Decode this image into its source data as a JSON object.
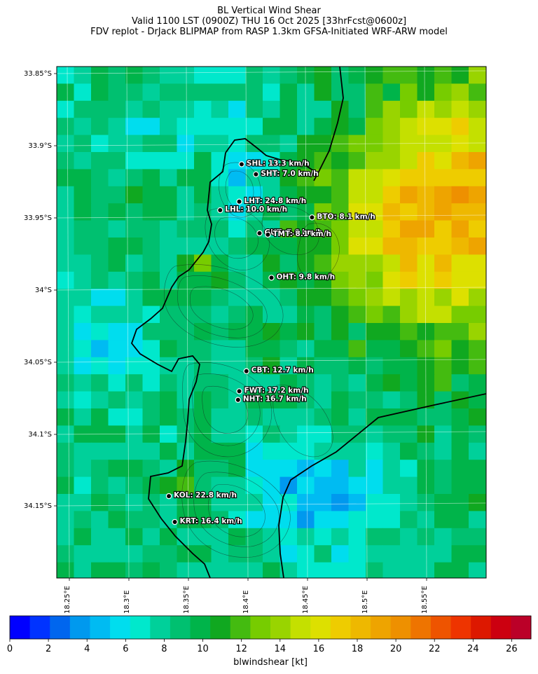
{
  "header": {
    "title": "BL Vertical Wind Shear",
    "valid_line": "Valid 1100 LST (0900Z) THU 16 Oct 2025 [33hrFcst@0600z]",
    "source_line": "FDV replot - DrJack BLIPMAP from RASP 1.3km GFSA-Initiated WRF-ARW model"
  },
  "axes": {
    "lat_labels": [
      "33.85°S",
      "33.9°S",
      "33.95°S",
      "34°S",
      "34.05°S",
      "34.1°S",
      "34.15°S"
    ],
    "lon_labels": [
      "18.25°E",
      "18.3°E",
      "18.35°E",
      "18.4°E",
      "18.45°E",
      "18.5°E",
      "18.55°E"
    ]
  },
  "stations": [
    {
      "code": "SHL",
      "value": "13.3 km/h",
      "lon": 18.396,
      "lat": -33.908
    },
    {
      "code": "SHT",
      "value": "7.0 km/h",
      "lon": 18.408,
      "lat": -33.915
    },
    {
      "code": "LHT",
      "value": "24.8 km/h",
      "lon": 18.394,
      "lat": -33.934
    },
    {
      "code": "LHL",
      "value": "10.0 km/h",
      "lon": 18.378,
      "lat": -33.94
    },
    {
      "code": "BTO",
      "value": "8.1 km/h",
      "lon": 18.455,
      "lat": -33.945
    },
    {
      "code": "GUT",
      "value": "7.6 km/h",
      "lon": 18.411,
      "lat": -33.956
    },
    {
      "code": "TMT",
      "value": "8.1 km/h",
      "lon": 18.418,
      "lat": -33.957
    },
    {
      "code": "OHT",
      "value": "9.8 km/h",
      "lon": 18.421,
      "lat": -33.987
    },
    {
      "code": "CBT",
      "value": "12.7 km/h",
      "lon": 18.4,
      "lat": -34.052
    },
    {
      "code": "FWT",
      "value": "17.2 km/h",
      "lon": 18.394,
      "lat": -34.066
    },
    {
      "code": "NHT",
      "value": "16.7 km/h",
      "lon": 18.393,
      "lat": -34.072
    },
    {
      "code": "KOL",
      "value": "22.8 km/h",
      "lon": 18.335,
      "lat": -34.139
    },
    {
      "code": "KRT",
      "value": "16.4 km/h",
      "lon": 18.34,
      "lat": -34.157
    }
  ],
  "colorbar": {
    "label": "blwindshear [kt]",
    "ticks": [
      "0",
      "2",
      "4",
      "6",
      "8",
      "10",
      "12",
      "14",
      "16",
      "18",
      "20",
      "22",
      "24",
      "26"
    ],
    "colors": [
      "#0000ff",
      "#0033ff",
      "#0066ee",
      "#0099ee",
      "#00bbf2",
      "#00ddee",
      "#00e8cc",
      "#00d09a",
      "#00c070",
      "#00b44a",
      "#10a820",
      "#44bb10",
      "#77cc00",
      "#99d400",
      "#c4e000",
      "#dde000",
      "#eecc00",
      "#eeb800",
      "#eea400",
      "#ee9000",
      "#ee7400",
      "#ee5400",
      "#ee3400",
      "#dd1800",
      "#cc0010",
      "#bb0028"
    ]
  }
}
